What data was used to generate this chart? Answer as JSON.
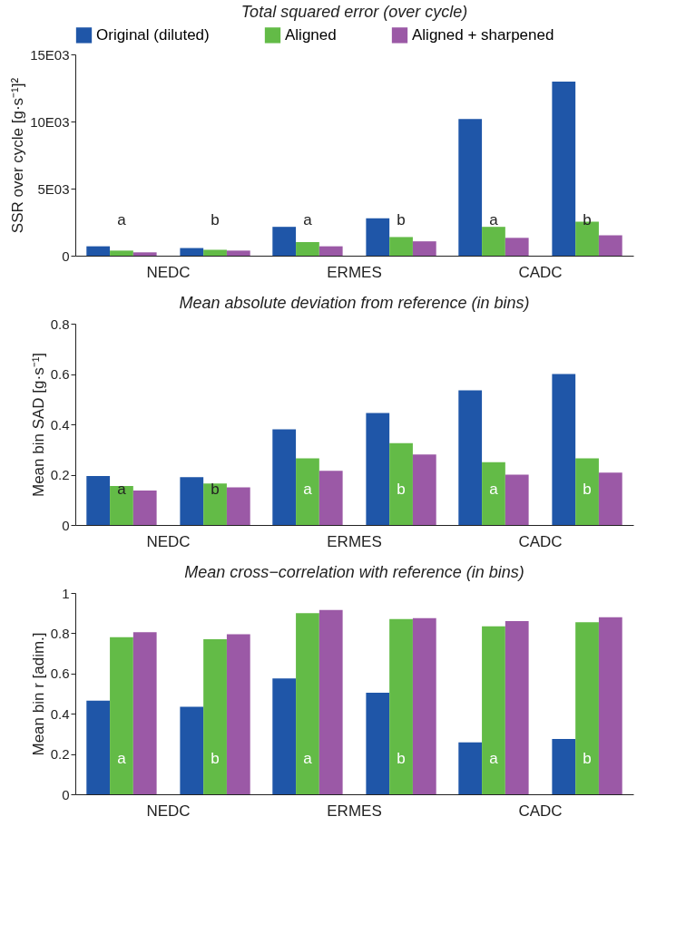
{
  "chart_data": [
    {
      "type": "bar",
      "title": "Total squared error (over cycle)",
      "ylabel": "SSR over cycle [g·s⁻¹]²",
      "categories": [
        "NEDC",
        "ERMES",
        "CADC"
      ],
      "legend": "top",
      "grid": false,
      "ylim": [
        0,
        15000
      ],
      "yticks": [
        0,
        {
          "value": 5000,
          "label": "5E03"
        },
        {
          "value": 10000,
          "label": "10E03"
        },
        {
          "value": 15000,
          "label": "15E03"
        }
      ],
      "series": [
        {
          "name": "Original (diluted)",
          "color": "#1f56a8",
          "values": [
            700,
            2150,
            10180
          ]
        },
        {
          "name": "Aligned",
          "color": "#63bb47",
          "values": [
            380,
            1010,
            2150
          ]
        },
        {
          "name": "Aligned + sharpened",
          "color": "#9b59a6",
          "values": [
            250,
            700,
            1330
          ]
        },
        {
          "color": "#1f56a8",
          "values": [
            570,
            2780,
            12970
          ]
        },
        {
          "color": "#63bb47",
          "values": [
            440,
            1390,
            2530
          ]
        },
        {
          "color": "#9b59a6",
          "values": [
            380,
            1070,
            1520
          ]
        }
      ],
      "annotations": [
        "a",
        "b",
        "a",
        "b",
        "a",
        "b"
      ]
    },
    {
      "type": "bar",
      "title": "Mean absolute deviation from reference (in bins)",
      "ylabel": "Mean bin SAD [g·s⁻¹]",
      "categories": [
        "NEDC",
        "ERMES",
        "CADC"
      ],
      "grid": false,
      "ylim": [
        0,
        0.8
      ],
      "yticks": [
        0,
        0.2,
        0.4,
        0.6,
        0.8
      ],
      "series": [
        {
          "color": "#1f56a8",
          "values": [
            0.195,
            0.38,
            0.535
          ]
        },
        {
          "color": "#63bb47",
          "values": [
            0.155,
            0.265,
            0.25
          ]
        },
        {
          "color": "#9b59a6",
          "values": [
            0.137,
            0.215,
            0.2
          ]
        },
        {
          "color": "#1f56a8",
          "values": [
            0.19,
            0.445,
            0.6
          ]
        },
        {
          "color": "#63bb47",
          "values": [
            0.165,
            0.325,
            0.265
          ]
        },
        {
          "color": "#9b59a6",
          "values": [
            0.15,
            0.28,
            0.208
          ]
        }
      ],
      "annotations": [
        "a",
        "b",
        "a",
        "b",
        "a",
        "b"
      ]
    },
    {
      "type": "bar",
      "title": "Mean cross−correlation with reference (in bins)",
      "ylabel": "Mean bin r [adim.]",
      "categories": [
        "NEDC",
        "ERMES",
        "CADC"
      ],
      "grid": false,
      "ylim": [
        0,
        1
      ],
      "yticks": [
        0,
        0.2,
        0.4,
        0.6,
        0.8,
        1
      ],
      "series": [
        {
          "color": "#1f56a8",
          "values": [
            0.465,
            0.575,
            0.258
          ]
        },
        {
          "color": "#63bb47",
          "values": [
            0.78,
            0.9,
            0.835
          ]
        },
        {
          "color": "#9b59a6",
          "values": [
            0.805,
            0.915,
            0.86
          ]
        },
        {
          "color": "#1f56a8",
          "values": [
            0.435,
            0.505,
            0.275
          ]
        },
        {
          "color": "#63bb47",
          "values": [
            0.77,
            0.87,
            0.855
          ]
        },
        {
          "color": "#9b59a6",
          "values": [
            0.795,
            0.875,
            0.88
          ]
        }
      ],
      "annotations": [
        "a",
        "b",
        "a",
        "b",
        "a",
        "b"
      ]
    }
  ]
}
